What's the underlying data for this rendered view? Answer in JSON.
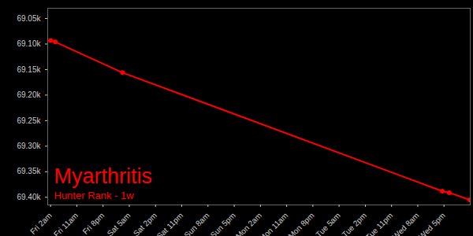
{
  "chart_data": {
    "type": "line",
    "title": "Myarthritis",
    "subtitle": "Hunter Rank - 1w",
    "x": [
      2,
      3.6,
      26.7,
      136.4,
      138.8,
      145.8
    ],
    "values": [
      69093,
      69096,
      69156,
      69388,
      69391,
      69405
    ],
    "color": "#ff0000",
    "marker": "circle",
    "xlim": [
      1,
      146
    ],
    "xticks": [
      {
        "value": 2,
        "label": "Fri 2am"
      },
      {
        "value": 11,
        "label": "Fri 11am"
      },
      {
        "value": 20,
        "label": "Fri 8pm"
      },
      {
        "value": 29,
        "label": "Sat 5am"
      },
      {
        "value": 38,
        "label": "Sat 2pm"
      },
      {
        "value": 47,
        "label": "Sat 11pm"
      },
      {
        "value": 56,
        "label": "Sun 8am"
      },
      {
        "value": 65,
        "label": "Sun 5pm"
      },
      {
        "value": 74,
        "label": "Mon 2am"
      },
      {
        "value": 83,
        "label": "Mon 11am"
      },
      {
        "value": 92,
        "label": "Mon 8pm"
      },
      {
        "value": 101,
        "label": "Tue 5am"
      },
      {
        "value": 110,
        "label": "Tue 2pm"
      },
      {
        "value": 119,
        "label": "Tue 11pm"
      },
      {
        "value": 128,
        "label": "Wed 8am"
      },
      {
        "value": 137,
        "label": "Wed 5pm"
      }
    ],
    "ylim": [
      69415,
      69030
    ],
    "yticks": [
      {
        "value": 69050,
        "label": "69.05k"
      },
      {
        "value": 69100,
        "label": "69.10k"
      },
      {
        "value": 69150,
        "label": "69.15k"
      },
      {
        "value": 69200,
        "label": "69.20k"
      },
      {
        "value": 69250,
        "label": "69.25k"
      },
      {
        "value": 69300,
        "label": "69.30k"
      },
      {
        "value": 69350,
        "label": "69.35k"
      },
      {
        "value": 69400,
        "label": "69.40k"
      }
    ],
    "grid": false
  }
}
